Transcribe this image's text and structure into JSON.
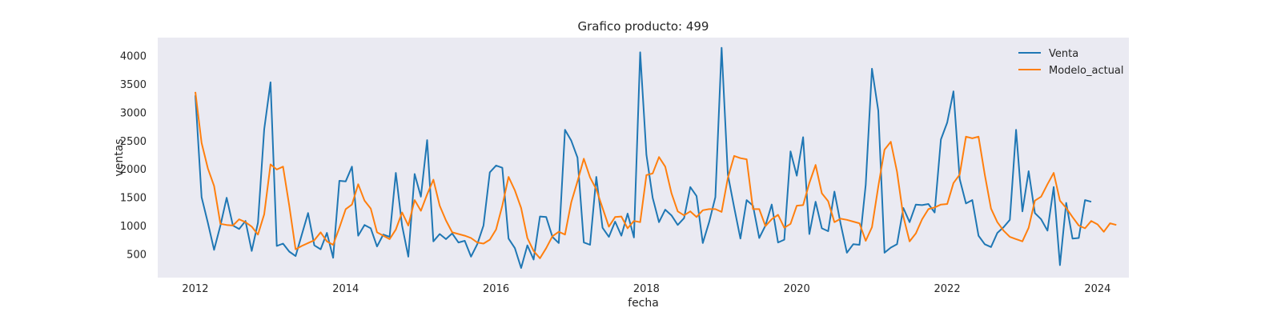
{
  "chart_data": {
    "type": "line",
    "title": "Grafico producto: 499",
    "xlabel": "fecha",
    "ylabel": "ventas",
    "x_start": "2012-01",
    "x_ticks": [
      "2012",
      "2014",
      "2016",
      "2018",
      "2020",
      "2022",
      "2024"
    ],
    "y_ticks": [
      500,
      1000,
      1500,
      2000,
      2500,
      3000,
      3500,
      4000
    ],
    "xlim": [
      "2011-07",
      "2024-06"
    ],
    "ylim": [
      80,
      4320
    ],
    "grid": false,
    "legend": "top-right",
    "background": "#eaeaf2",
    "series": [
      {
        "name": "Venta",
        "color": "#1f77b4",
        "values": [
          3300,
          1500,
          1050,
          570,
          1000,
          1490,
          1000,
          940,
          1080,
          550,
          1050,
          2700,
          3530,
          640,
          680,
          540,
          460,
          840,
          1220,
          650,
          580,
          870,
          430,
          1790,
          1780,
          2040,
          820,
          1010,
          950,
          630,
          840,
          800,
          1930,
          1000,
          450,
          1910,
          1510,
          2510,
          720,
          850,
          760,
          860,
          700,
          730,
          450,
          670,
          1000,
          1940,
          2060,
          2020,
          770,
          600,
          250,
          650,
          400,
          1160,
          1150,
          800,
          690,
          2690,
          2500,
          2200,
          700,
          660,
          1860,
          960,
          800,
          1070,
          820,
          1210,
          790,
          4060,
          2250,
          1490,
          1060,
          1280,
          1180,
          1010,
          1130,
          1680,
          1520,
          690,
          1060,
          1500,
          4140,
          1900,
          1320,
          770,
          1450,
          1350,
          780,
          1000,
          1370,
          700,
          750,
          2310,
          1880,
          2560,
          850,
          1420,
          950,
          900,
          1600,
          1030,
          520,
          670,
          660,
          1720,
          3770,
          3030,
          520,
          610,
          670,
          1310,
          1060,
          1370,
          1360,
          1380,
          1230,
          2520,
          2820,
          3370,
          1820,
          1390,
          1450,
          820,
          670,
          620,
          870,
          970,
          1100,
          2690,
          1250,
          1960,
          1220,
          1110,
          910,
          1680,
          300,
          1400,
          770,
          780,
          1450,
          1420
        ]
      },
      {
        "name": "Modelo_actual",
        "color": "#ff7f0e",
        "values": [
          3360,
          2460,
          2010,
          1700,
          1030,
          1010,
          1000,
          1110,
          1060,
          980,
          840,
          1200,
          2080,
          1990,
          2040,
          1350,
          580,
          640,
          690,
          740,
          880,
          720,
          660,
          960,
          1290,
          1370,
          1730,
          1440,
          1300,
          880,
          820,
          760,
          930,
          1230,
          1000,
          1450,
          1260,
          1550,
          1810,
          1350,
          1090,
          880,
          850,
          820,
          780,
          700,
          680,
          750,
          930,
          1350,
          1860,
          1620,
          1310,
          780,
          550,
          420,
          600,
          810,
          890,
          840,
          1410,
          1780,
          2180,
          1850,
          1640,
          1310,
          980,
          1150,
          1160,
          950,
          1080,
          1060,
          1890,
          1920,
          2210,
          2040,
          1570,
          1250,
          1180,
          1250,
          1150,
          1270,
          1290,
          1290,
          1240,
          1840,
          2230,
          2190,
          2170,
          1290,
          1290,
          990,
          1110,
          1190,
          960,
          1030,
          1350,
          1360,
          1750,
          2070,
          1570,
          1430,
          1060,
          1120,
          1100,
          1070,
          1040,
          730,
          970,
          1690,
          2340,
          2480,
          1950,
          1160,
          720,
          860,
          1110,
          1290,
          1320,
          1370,
          1380,
          1750,
          1900,
          2570,
          2540,
          2570,
          1900,
          1300,
          1060,
          910,
          800,
          760,
          720,
          960,
          1440,
          1510,
          1730,
          1930,
          1440,
          1310,
          1150,
          1000,
          950,
          1080,
          1020,
          890,
          1040,
          1010
        ]
      }
    ]
  }
}
